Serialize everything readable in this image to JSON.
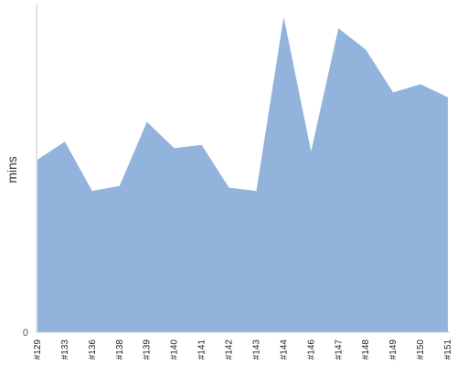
{
  "chart_data": {
    "type": "area",
    "ylabel": "mins",
    "y_tick_labels": [
      "0"
    ],
    "ylim": [
      0,
      100
    ],
    "grid": false,
    "color": "#92b4dc",
    "categories": [
      "#129",
      "#133",
      "#136",
      "#138",
      "#139",
      "#140",
      "#141",
      "#142",
      "#143",
      "#144",
      "#146",
      "#147",
      "#148",
      "#149",
      "#150",
      "#151"
    ],
    "values": [
      52.5,
      58,
      43,
      44.5,
      64,
      56,
      57,
      44,
      43,
      96,
      55,
      92.5,
      86,
      73,
      75.5,
      71.5
    ]
  }
}
